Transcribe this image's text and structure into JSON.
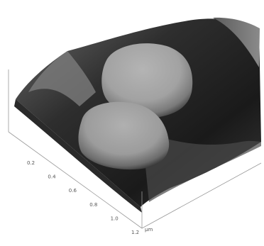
{
  "axis": {
    "ticks": [
      "0.2",
      "0.4",
      "0.6",
      "0.8",
      "1.0",
      "1.2"
    ],
    "unit": "µm"
  }
}
